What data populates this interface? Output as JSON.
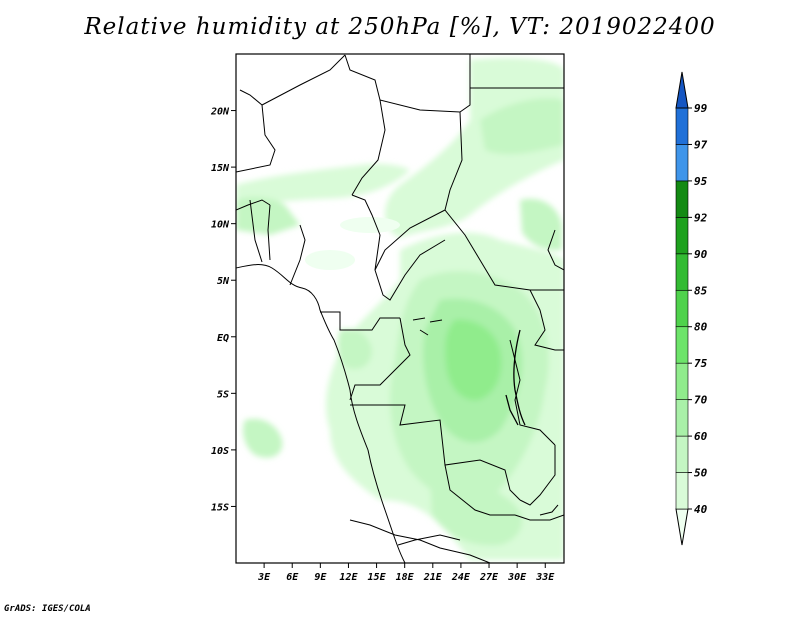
{
  "title": "Relative humidity at 250hPa [%], VT: 2019022400",
  "credit": "GrADS: IGES/COLA",
  "map": {
    "lon_range": [
      0,
      35
    ],
    "lat_range": [
      -20,
      25
    ],
    "lat_ticks": [
      {
        "value": 20,
        "label": "20N"
      },
      {
        "value": 15,
        "label": "15N"
      },
      {
        "value": 10,
        "label": "10N"
      },
      {
        "value": 5,
        "label": "5N"
      },
      {
        "value": 0,
        "label": "EQ"
      },
      {
        "value": -5,
        "label": "5S"
      },
      {
        "value": -10,
        "label": "10S"
      },
      {
        "value": -15,
        "label": "15S"
      }
    ],
    "lon_ticks": [
      {
        "value": 3,
        "label": "3E"
      },
      {
        "value": 6,
        "label": "6E"
      },
      {
        "value": 9,
        "label": "9E"
      },
      {
        "value": 12,
        "label": "12E"
      },
      {
        "value": 15,
        "label": "15E"
      },
      {
        "value": 18,
        "label": "18E"
      },
      {
        "value": 21,
        "label": "21E"
      },
      {
        "value": 24,
        "label": "24E"
      },
      {
        "value": 27,
        "label": "27E"
      },
      {
        "value": 30,
        "label": "30E"
      },
      {
        "value": 33,
        "label": "33E"
      }
    ]
  },
  "colorbar": {
    "levels": [
      "40",
      "50",
      "60",
      "70",
      "75",
      "80",
      "85",
      "90",
      "92",
      "95",
      "97",
      "99"
    ],
    "colors": [
      "#effff0",
      "#d9fbd8",
      "#c4f6c3",
      "#a9f0a8",
      "#90ec8c",
      "#6de46a",
      "#4fd24c",
      "#33bb33",
      "#1ea11e",
      "#138a13",
      "#3f95ea",
      "#2070d8",
      "#1556c2"
    ]
  }
}
